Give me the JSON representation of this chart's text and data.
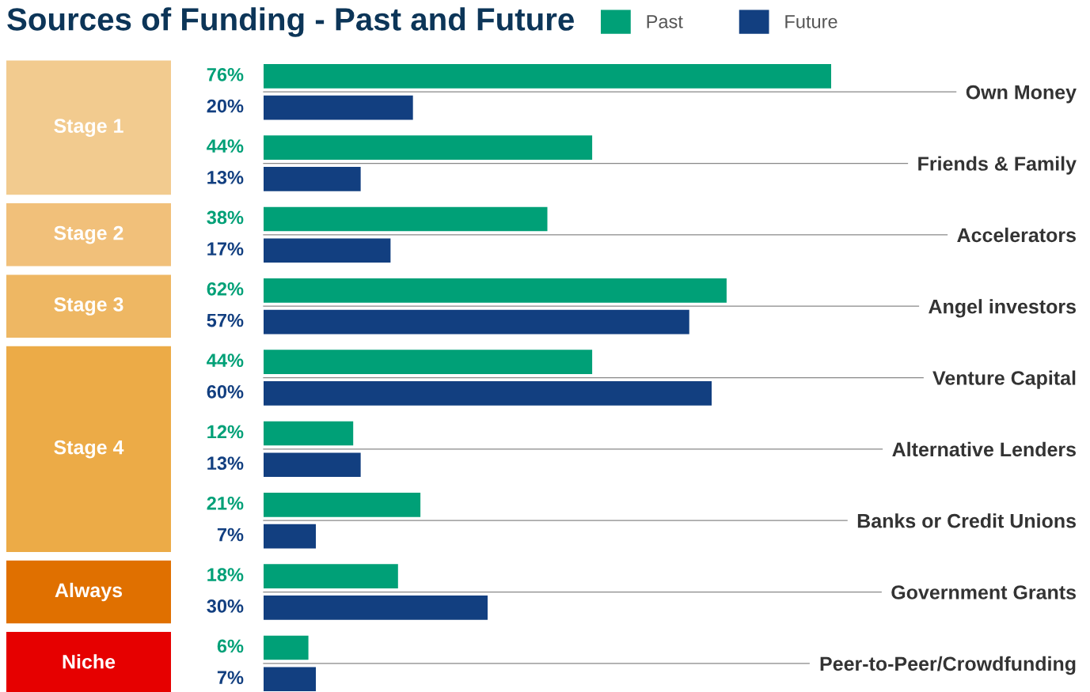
{
  "chart_data": {
    "type": "bar",
    "orientation": "horizontal",
    "title": "Sources of Funding - Past and Future",
    "categories": [
      "Own Money",
      "Friends & Family",
      "Accelerators",
      "Angel investors",
      "Venture Capital",
      "Alternative Lenders",
      "Banks or Credit Unions",
      "Government Grants",
      "Peer-to-Peer/Crowdfunding"
    ],
    "series": [
      {
        "name": "Past",
        "color": "#00a077",
        "values": [
          76,
          44,
          38,
          62,
          44,
          12,
          21,
          18,
          6
        ],
        "value_labels": [
          "76%",
          "44%",
          "38%",
          "62%",
          "44%",
          "12%",
          "21%",
          "18%",
          "6%"
        ]
      },
      {
        "name": "Future",
        "color": "#123f80",
        "values": [
          20,
          13,
          17,
          57,
          60,
          13,
          7,
          30,
          7
        ],
        "value_labels": [
          "20%",
          "13%",
          "17%",
          "57%",
          "60%",
          "13%",
          "7%",
          "30%",
          "7%"
        ]
      }
    ],
    "annotations": [
      "Stage 1",
      "Stage 2",
      "Stage 3",
      "Stage 4",
      "Always",
      "Niche"
    ],
    "legend": "top",
    "grid": "y",
    "tick_labels": "y"
  }
}
